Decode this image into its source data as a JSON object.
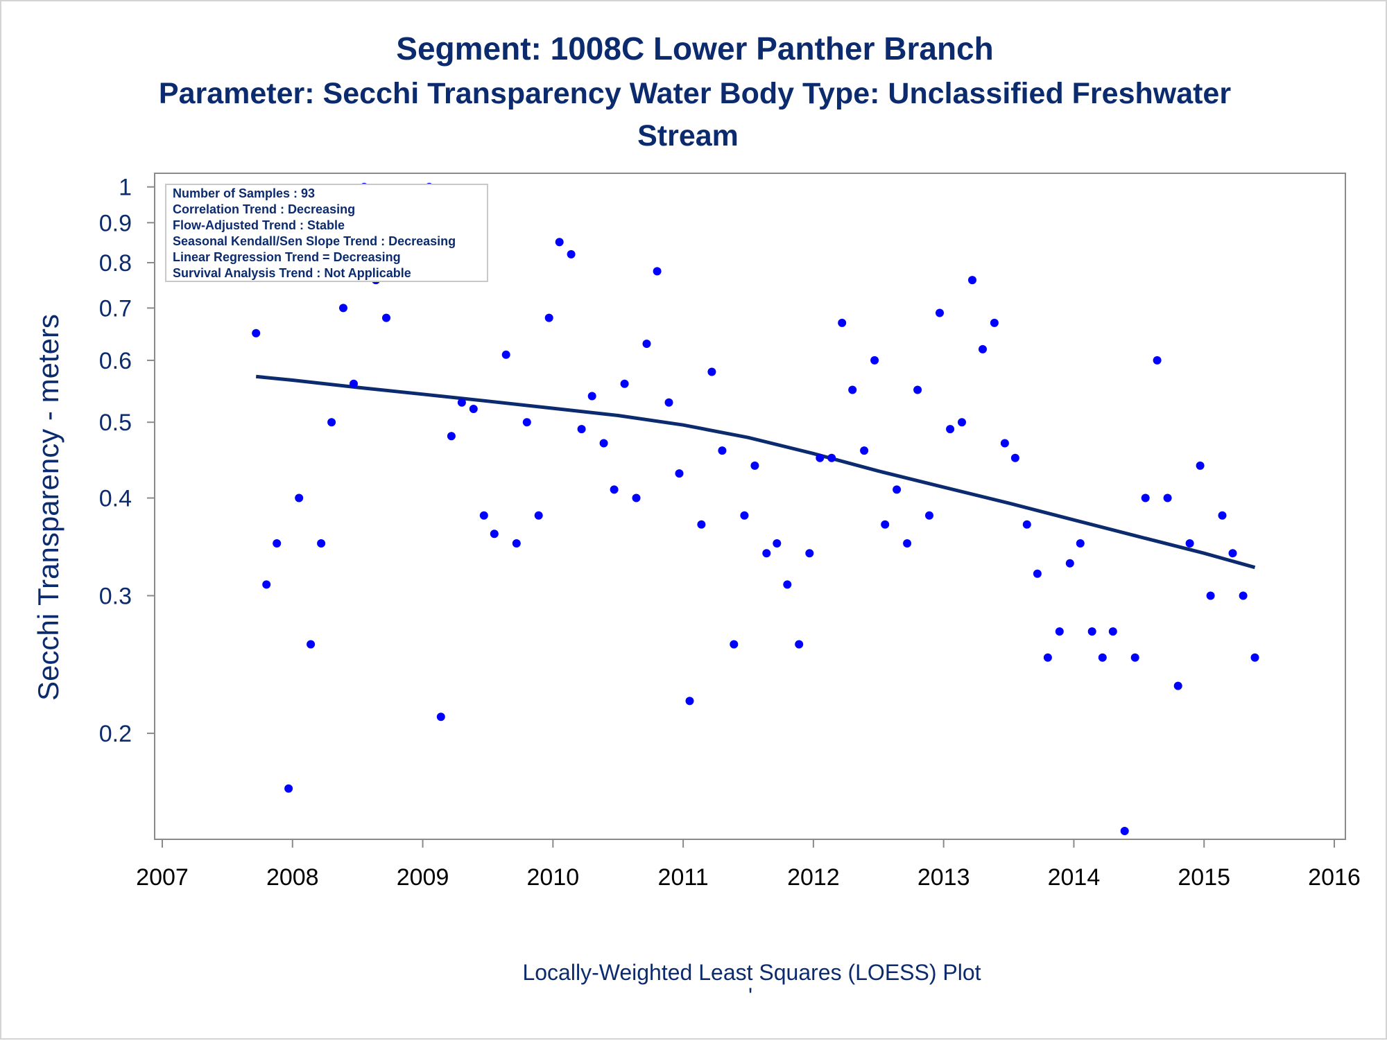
{
  "colors": {
    "title": "#0b2b6e",
    "point": "#0000ff",
    "loess_line": "#0b2b6e",
    "axis": "#8a8a8a"
  },
  "title_lines": [
    "Segment: 1008C  Lower Panther Branch",
    "Parameter: Secchi Transparency   Water Body Type: Unclassified Freshwater",
    "Stream"
  ],
  "info_box": [
    "Number of Samples : 93",
    "Correlation Trend : Decreasing",
    "Flow-Adjusted Trend : Stable",
    "Seasonal Kendall/Sen Slope Trend : Decreasing",
    "Linear Regression Trend = Decreasing",
    "Survival Analysis Trend : Not Applicable"
  ],
  "footnote_mark": "'",
  "chart_data": {
    "type": "scatter",
    "xlabel": "Locally-Weighted Least Squares (LOESS) Plot",
    "ylabel": "Secchi Transparency - meters",
    "yscale": "log",
    "xlim": [
      2007.0,
      2016.0
    ],
    "ylim": [
      0.15,
      1.02
    ],
    "x_ticks": [
      2007,
      2008,
      2009,
      2010,
      2011,
      2012,
      2013,
      2014,
      2015,
      2016
    ],
    "x_tick_labels": [
      "2007",
      "2008",
      "2009",
      "2010",
      "2011",
      "2012",
      "2013",
      "2014",
      "2015",
      "2016"
    ],
    "y_ticks": [
      0.2,
      0.3,
      0.4,
      0.5,
      0.6,
      0.7,
      0.8,
      0.9,
      1
    ],
    "y_tick_labels": [
      "0.2",
      "0.3",
      "0.4",
      "0.5",
      "0.6",
      "0.7",
      "0.8",
      "0.9",
      "1"
    ],
    "grid": false,
    "legend": "none",
    "points": [
      [
        2007.72,
        0.65
      ],
      [
        2007.8,
        0.31
      ],
      [
        2007.88,
        0.35
      ],
      [
        2007.97,
        0.17
      ],
      [
        2008.05,
        0.4
      ],
      [
        2008.14,
        0.26
      ],
      [
        2008.22,
        0.35
      ],
      [
        2008.3,
        0.5
      ],
      [
        2008.39,
        0.7
      ],
      [
        2008.47,
        0.56
      ],
      [
        2008.55,
        1.0
      ],
      [
        2008.64,
        0.76
      ],
      [
        2008.72,
        0.68
      ],
      [
        2008.8,
        0.78
      ],
      [
        2008.89,
        0.95
      ],
      [
        2008.97,
        0.92
      ],
      [
        2009.05,
        1.0
      ],
      [
        2009.14,
        0.21
      ],
      [
        2009.22,
        0.48
      ],
      [
        2009.3,
        0.53
      ],
      [
        2009.39,
        0.52
      ],
      [
        2009.47,
        0.38
      ],
      [
        2009.55,
        0.36
      ],
      [
        2009.64,
        0.61
      ],
      [
        2009.72,
        0.35
      ],
      [
        2009.8,
        0.5
      ],
      [
        2009.89,
        0.38
      ],
      [
        2009.97,
        0.68
      ],
      [
        2010.05,
        0.85
      ],
      [
        2010.14,
        0.82
      ],
      [
        2010.22,
        0.49
      ],
      [
        2010.3,
        0.54
      ],
      [
        2010.39,
        0.47
      ],
      [
        2010.47,
        0.41
      ],
      [
        2010.55,
        0.56
      ],
      [
        2010.64,
        0.4
      ],
      [
        2010.72,
        0.63
      ],
      [
        2010.8,
        0.78
      ],
      [
        2010.89,
        0.53
      ],
      [
        2010.97,
        0.43
      ],
      [
        2011.05,
        0.22
      ],
      [
        2011.14,
        0.37
      ],
      [
        2011.22,
        0.58
      ],
      [
        2011.3,
        0.46
      ],
      [
        2011.39,
        0.26
      ],
      [
        2011.47,
        0.38
      ],
      [
        2011.55,
        0.44
      ],
      [
        2011.64,
        0.34
      ],
      [
        2011.72,
        0.35
      ],
      [
        2011.8,
        0.31
      ],
      [
        2011.89,
        0.26
      ],
      [
        2011.97,
        0.34
      ],
      [
        2012.05,
        0.45
      ],
      [
        2012.14,
        0.45
      ],
      [
        2012.22,
        0.67
      ],
      [
        2012.3,
        0.55
      ],
      [
        2012.39,
        0.46
      ],
      [
        2012.47,
        0.6
      ],
      [
        2012.55,
        0.37
      ],
      [
        2012.64,
        0.41
      ],
      [
        2012.72,
        0.35
      ],
      [
        2012.8,
        0.55
      ],
      [
        2012.89,
        0.38
      ],
      [
        2012.97,
        0.69
      ],
      [
        2013.05,
        0.49
      ],
      [
        2013.14,
        0.5
      ],
      [
        2013.22,
        0.76
      ],
      [
        2013.3,
        0.62
      ],
      [
        2013.39,
        0.67
      ],
      [
        2013.47,
        0.47
      ],
      [
        2013.55,
        0.45
      ],
      [
        2013.64,
        0.37
      ],
      [
        2013.72,
        0.32
      ],
      [
        2013.8,
        0.25
      ],
      [
        2013.89,
        0.27
      ],
      [
        2013.97,
        0.33
      ],
      [
        2014.05,
        0.35
      ],
      [
        2014.14,
        0.27
      ],
      [
        2014.22,
        0.25
      ],
      [
        2014.3,
        0.27
      ],
      [
        2014.39,
        0.15
      ],
      [
        2014.47,
        0.25
      ],
      [
        2014.55,
        0.4
      ],
      [
        2014.64,
        0.6
      ],
      [
        2014.72,
        0.4
      ],
      [
        2014.8,
        0.23
      ],
      [
        2014.89,
        0.35
      ],
      [
        2014.97,
        0.44
      ],
      [
        2015.05,
        0.3
      ],
      [
        2015.14,
        0.38
      ],
      [
        2015.22,
        0.34
      ],
      [
        2015.3,
        0.3
      ],
      [
        2015.39,
        0.25
      ]
    ],
    "loess_curve": [
      [
        2007.72,
        0.572
      ],
      [
        2008.0,
        0.566
      ],
      [
        2008.5,
        0.554
      ],
      [
        2009.0,
        0.543
      ],
      [
        2009.5,
        0.532
      ],
      [
        2010.0,
        0.521
      ],
      [
        2010.5,
        0.51
      ],
      [
        2011.0,
        0.496
      ],
      [
        2011.5,
        0.478
      ],
      [
        2012.0,
        0.456
      ],
      [
        2012.5,
        0.433
      ],
      [
        2013.0,
        0.413
      ],
      [
        2013.5,
        0.394
      ],
      [
        2014.0,
        0.375
      ],
      [
        2014.5,
        0.357
      ],
      [
        2015.0,
        0.34
      ],
      [
        2015.39,
        0.326
      ]
    ]
  }
}
